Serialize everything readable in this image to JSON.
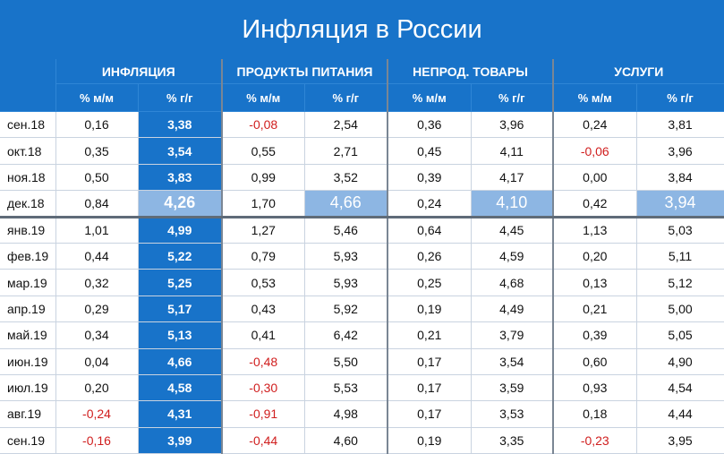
{
  "title": "Инфляция в России",
  "header": {
    "groups": [
      "ИНФЛЯЦИЯ",
      "ПРОДУКТЫ ПИТАНИЯ",
      "НЕПРОД. ТОВАРЫ",
      "УСЛУГИ"
    ],
    "sub": [
      "% м/м",
      "% г/г"
    ]
  },
  "chart_data": {
    "type": "table",
    "title": "Инфляция в России",
    "columns": [
      "",
      "ИНФЛЯЦИЯ % м/м",
      "ИНФЛЯЦИЯ % г/г",
      "ПРОДУКТЫ ПИТАНИЯ % м/м",
      "ПРОДУКТЫ ПИТАНИЯ % г/г",
      "НЕПРОД. ТОВАРЫ % м/м",
      "НЕПРОД. ТОВАРЫ % г/г",
      "УСЛУГИ % м/м",
      "УСЛУГИ % г/г"
    ],
    "rows": [
      [
        "сен.18",
        "0,16",
        "3,38",
        "-0,08",
        "2,54",
        "0,36",
        "3,96",
        "0,24",
        "3,81"
      ],
      [
        "окт.18",
        "0,35",
        "3,54",
        "0,55",
        "2,71",
        "0,45",
        "4,11",
        "-0,06",
        "3,96"
      ],
      [
        "ноя.18",
        "0,50",
        "3,83",
        "0,99",
        "3,52",
        "0,39",
        "4,17",
        "0,00",
        "3,84"
      ],
      [
        "дек.18",
        "0,84",
        "4,26",
        "1,70",
        "4,66",
        "0,24",
        "4,10",
        "0,42",
        "3,94"
      ],
      [
        "янв.19",
        "1,01",
        "4,99",
        "1,27",
        "5,46",
        "0,64",
        "4,45",
        "1,13",
        "5,03"
      ],
      [
        "фев.19",
        "0,44",
        "5,22",
        "0,79",
        "5,93",
        "0,26",
        "4,59",
        "0,20",
        "5,11"
      ],
      [
        "мар.19",
        "0,32",
        "5,25",
        "0,53",
        "5,93",
        "0,25",
        "4,68",
        "0,13",
        "5,12"
      ],
      [
        "апр.19",
        "0,29",
        "5,17",
        "0,43",
        "5,92",
        "0,19",
        "4,49",
        "0,21",
        "5,00"
      ],
      [
        "май.19",
        "0,34",
        "5,13",
        "0,41",
        "6,42",
        "0,21",
        "3,79",
        "0,39",
        "5,05"
      ],
      [
        "июн.19",
        "0,04",
        "4,66",
        "-0,48",
        "5,50",
        "0,17",
        "3,54",
        "0,60",
        "4,90"
      ],
      [
        "июл.19",
        "0,20",
        "4,58",
        "-0,30",
        "5,53",
        "0,17",
        "3,59",
        "0,93",
        "4,54"
      ],
      [
        "авг.19",
        "-0,24",
        "4,31",
        "-0,91",
        "4,98",
        "0,17",
        "3,53",
        "0,18",
        "4,44"
      ],
      [
        "сен.19",
        "-0,16",
        "3,99",
        "-0,44",
        "4,60",
        "0,19",
        "3,35",
        "-0,23",
        "3,95"
      ]
    ],
    "highlight_row": "дек.18",
    "colors": {
      "header": "#1873c9",
      "highlight": "#8db6e3",
      "negative": "#d01e1e"
    }
  }
}
